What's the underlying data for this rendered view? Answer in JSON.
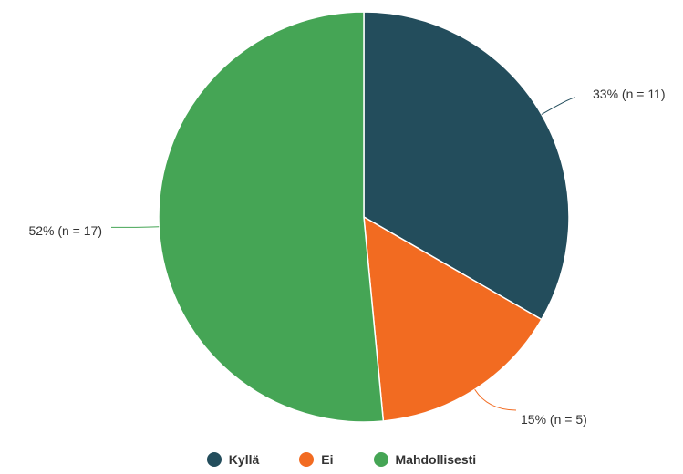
{
  "chart_data": {
    "type": "pie",
    "title": "",
    "legend_position": "bottom",
    "slices": [
      {
        "name": "Kyllä",
        "value": 11,
        "percent": 33,
        "label": "33% (n = 11)",
        "color": "#234d5c"
      },
      {
        "name": "Ei",
        "value": 5,
        "percent": 15,
        "label": "15% (n = 5)",
        "color": "#f26b21"
      },
      {
        "name": "Mahdollisesti",
        "value": 17,
        "percent": 52,
        "label": "52% (n = 17)",
        "color": "#45a555"
      }
    ]
  }
}
